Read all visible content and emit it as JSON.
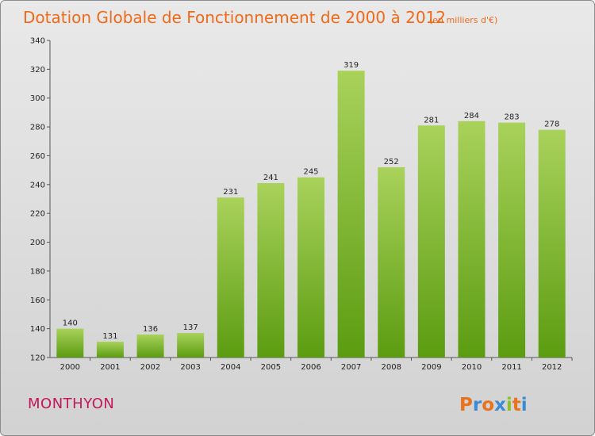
{
  "title": "Dotation Globale de Fonctionnement de 2000 à 2012",
  "subtitle": "(en milliers d'€)",
  "commune": "MONTHYON",
  "logo": {
    "letters": [
      "P",
      "r",
      "o",
      "x",
      "i",
      "t",
      "i"
    ]
  },
  "colors": {
    "bar_light": "#a9d25b",
    "bar_dark": "#5b9c11",
    "title": "#f06a1a",
    "commune": "#c2185b"
  },
  "chart_data": {
    "type": "bar",
    "title": "Dotation Globale de Fonctionnement de 2000 à 2012",
    "subtitle": "(en milliers d'€)",
    "xlabel": "",
    "ylabel": "",
    "categories": [
      "2000",
      "2001",
      "2002",
      "2003",
      "2004",
      "2005",
      "2006",
      "2007",
      "2008",
      "2009",
      "2010",
      "2011",
      "2012"
    ],
    "values": [
      140,
      131,
      136,
      137,
      231,
      241,
      245,
      319,
      252,
      281,
      284,
      283,
      278
    ],
    "ylim": [
      120,
      340
    ],
    "yticks": [
      120,
      140,
      160,
      180,
      200,
      220,
      240,
      260,
      280,
      300,
      320,
      340
    ],
    "grid": false,
    "legend": "none"
  }
}
